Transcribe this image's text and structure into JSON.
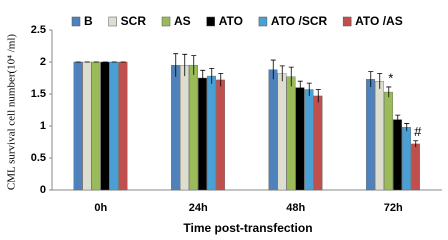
{
  "chart_data": {
    "type": "bar",
    "y_label": "CML survival cell number(10⁴ /ml)",
    "x_label": "Time post-transfection",
    "categories": [
      "0h",
      "24h",
      "48h",
      "72h"
    ],
    "ylim": [
      0,
      2.5
    ],
    "yticks": [
      0,
      0.5,
      1,
      1.5,
      2,
      2.5
    ],
    "series": [
      {
        "name": "B",
        "color": "#4f81bd",
        "values": [
          2,
          1.95,
          1.88,
          1.73
        ],
        "errors": [
          0,
          0.18,
          0.15,
          0.12
        ],
        "annotations": [
          null,
          null,
          null,
          null
        ]
      },
      {
        "name": "SCR",
        "color": "#deded0",
        "values": [
          2,
          1.95,
          1.82,
          1.7
        ],
        "errors": [
          0,
          0.17,
          0.12,
          0.12
        ],
        "annotations": [
          null,
          null,
          null,
          null
        ]
      },
      {
        "name": "AS",
        "color": "#9bbb59",
        "values": [
          2,
          1.95,
          1.77,
          1.53
        ],
        "errors": [
          0,
          0.15,
          0.15,
          0.08
        ],
        "annotations": [
          null,
          null,
          null,
          "*"
        ]
      },
      {
        "name": "ATO",
        "color": "#000000",
        "values": [
          2,
          1.75,
          1.6,
          1.1
        ],
        "errors": [
          0,
          0.12,
          0.1,
          0.07
        ],
        "annotations": [
          null,
          null,
          null,
          null
        ]
      },
      {
        "name": "ATO /SCR",
        "color": "#4a9fd5",
        "values": [
          2,
          1.78,
          1.57,
          0.98
        ],
        "errors": [
          0,
          0.12,
          0.1,
          0.06
        ],
        "annotations": [
          null,
          null,
          null,
          null
        ]
      },
      {
        "name": "ATO /AS",
        "color": "#c0504d",
        "values": [
          2,
          1.72,
          1.47,
          0.72
        ],
        "errors": [
          0,
          0.1,
          0.1,
          0.05
        ],
        "annotations": [
          null,
          null,
          null,
          "#"
        ]
      }
    ]
  }
}
